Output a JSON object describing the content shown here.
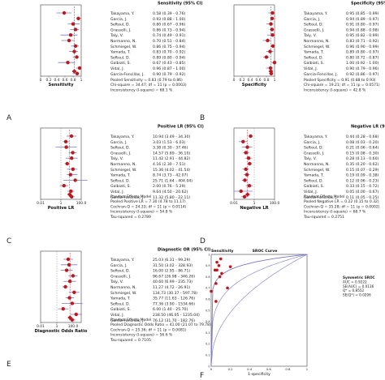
{
  "chart_data": [
    {
      "panel": "A",
      "type": "forest",
      "column_header": "Sensitivity (95% CI)",
      "xlabel": "Sensitivity",
      "ticks": [
        "0",
        "0.2",
        "0.4",
        "0.6",
        "0.8",
        "1"
      ],
      "xlim": [
        0,
        1
      ],
      "log_scale": false,
      "pooled": 0.83,
      "studies": [
        {
          "name": "Takayama, Y.",
          "value": 0.58,
          "lo": 0.39,
          "hi": 0.76,
          "text": "0.58    (0.39 - 0.76)"
        },
        {
          "name": "Garcia, J.",
          "value": 0.93,
          "lo": 0.88,
          "hi": 1.0,
          "text": "0.93    (0.88 - 1.00)"
        },
        {
          "name": "Seftoul, D.",
          "value": 0.8,
          "lo": 0.67,
          "hi": 0.96,
          "text": "0.80    (0.67 - 0.96)"
        },
        {
          "name": "Grasselli, J.",
          "value": 0.86,
          "lo": 0.73,
          "hi": 0.94,
          "text": "0.86    (0.73 - 0.94)"
        },
        {
          "name": "Taly, V.",
          "value": 0.74,
          "lo": 0.49,
          "hi": 0.91,
          "text": "0.74    (0.49 - 0.91)"
        },
        {
          "name": "Normanno, N.",
          "value": 0.7,
          "lo": 0.51,
          "hi": 0.84,
          "text": "0.70    (0.51 - 0.84)"
        },
        {
          "name": "Schmiegel, W.",
          "value": 0.86,
          "lo": 0.75,
          "hi": 0.94,
          "text": "0.86    (0.75 - 0.94)"
        },
        {
          "name": "Yamada, T.",
          "value": 0.83,
          "lo": 0.7,
          "hi": 0.92,
          "text": "0.83    (0.70 - 0.92)"
        },
        {
          "name": "Seftoul, D.",
          "value": 0.89,
          "lo": 0.8,
          "hi": 0.94,
          "text": "0.89    (0.80 - 0.94)"
        },
        {
          "name": "Galbiati, S.",
          "value": 0.67,
          "lo": 0.43,
          "hi": 0.85,
          "text": "0.67    (0.43 - 0.85)"
        },
        {
          "name": "Vidal, J.",
          "value": 0.96,
          "lo": 0.87,
          "hi": 1.0,
          "text": "0.96    (0.87 - 1.00)"
        },
        {
          "name": "Garcia-Foncillas, J.",
          "value": 0.9,
          "lo": 0.79,
          "hi": 0.92,
          "text": "0.90    (0.79 - 0.92)"
        }
      ],
      "summary": [
        "Pooled Sensitivity = 0.83 (0.79 to 0.86)",
        "Chi-square = 34.47; df = 11 (p = 0.0003)",
        "Inconsistency (I-square) = 68.1 %"
      ]
    },
    {
      "panel": "B",
      "type": "forest",
      "column_header": "Specificity (95% CI)",
      "xlabel": "Specificity",
      "ticks": [
        "0",
        "0.2",
        "0.4",
        "0.6",
        "0.8",
        "1"
      ],
      "xlim": [
        0,
        1
      ],
      "log_scale": false,
      "pooled": 0.91,
      "studies": [
        {
          "name": "Takayama, Y.",
          "value": 0.95,
          "lo": 0.85,
          "hi": 0.99,
          "text": "0.95    (0.85 - 0.99)"
        },
        {
          "name": "Garcia, J.",
          "value": 0.94,
          "lo": 0.89,
          "hi": 0.97,
          "text": "0.94    (0.89 - 0.97)"
        },
        {
          "name": "Seftoul, D.",
          "value": 0.91,
          "lo": 0.8,
          "hi": 0.97,
          "text": "0.91    (0.80 - 0.97)"
        },
        {
          "name": "Grasselli, J.",
          "value": 0.94,
          "lo": 0.88,
          "hi": 0.98,
          "text": "0.94    (0.88 - 0.98)"
        },
        {
          "name": "Taly, V.",
          "value": 0.95,
          "lo": 0.82,
          "hi": 0.99,
          "text": "0.95    (0.82 - 0.99)"
        },
        {
          "name": "Normanno, N.",
          "value": 0.83,
          "lo": 0.71,
          "hi": 0.92,
          "text": "0.83    (0.71 - 0.92)"
        },
        {
          "name": "Schmiegel, W.",
          "value": 0.96,
          "lo": 0.9,
          "hi": 0.99,
          "text": "0.96    (0.90 - 0.99)"
        },
        {
          "name": "Yamada, T.",
          "value": 0.89,
          "lo": 0.8,
          "hi": 0.97,
          "text": "0.89    (0.80 - 0.97)"
        },
        {
          "name": "Seftoul, D.",
          "value": 0.8,
          "lo": 0.72,
          "hi": 0.87,
          "text": "0.80    (0.72 - 0.87)"
        },
        {
          "name": "Galbiati, S.",
          "value": 1.0,
          "lo": 0.92,
          "hi": 1.0,
          "text": "1.00    (0.92 - 1.00)"
        },
        {
          "name": "Vidal, J.",
          "value": 0.9,
          "lo": 0.79,
          "hi": 0.96,
          "text": "0.90    (0.79 - 0.96)"
        },
        {
          "name": "Garcia-Foncillas, J.",
          "value": 0.92,
          "lo": 0.86,
          "hi": 0.97,
          "text": "0.92    (0.86 - 0.97)"
        }
      ],
      "summary": [
        "Pooled Specificity = 0.91 (0.88 to 0.93)",
        "Chi-square = 19.21; df = 11 (p = 0.0571)",
        "Inconsistency (I-square) = 42.8 %"
      ]
    },
    {
      "panel": "C",
      "type": "forest",
      "column_header": "Positive LR (95% CI)",
      "xlabel": "Positive LR",
      "ticks": [
        "0.01",
        "1",
        "100.0"
      ],
      "xlim": [
        0.01,
        100
      ],
      "log_scale": true,
      "pooled": 7.3,
      "studies": [
        {
          "name": "Takayama, Y.",
          "value": 10.94,
          "lo": 3.49,
          "hi": 34.3,
          "text": "10.94    (3.49 - 34.30)"
        },
        {
          "name": "Garcia, J.",
          "value": 3.03,
          "lo": 1.53,
          "hi": 6.03,
          "text": "3.03    (1.53 - 6.03)"
        },
        {
          "name": "Seftoul, D.",
          "value": 3.38,
          "lo": 0.3,
          "hi": 37.46,
          "text": "3.38    (0.30 - 37.46)"
        },
        {
          "name": "Grasselli, J.",
          "value": 14.57,
          "lo": 5.89,
          "hi": 36.1,
          "text": "14.57    (5.89 - 36.10)"
        },
        {
          "name": "Taly, V.",
          "value": 11.42,
          "lo": 2.91,
          "hi": 44.82,
          "text": "11.42    (2.91 - 44.82)"
        },
        {
          "name": "Normanno, N.",
          "value": 4.16,
          "lo": 2.3,
          "hi": 7.51,
          "text": "4.16    (2.30 - 7.51)"
        },
        {
          "name": "Schmiegel, W.",
          "value": 15.36,
          "lo": 4.02,
          "hi": 41.54,
          "text": "15.36    (4.02 - 41.54)"
        },
        {
          "name": "Yamada, T.",
          "value": 8.74,
          "lo": 3.73,
          "hi": 42.07,
          "text": "8.74    (3.73 - 42.07)"
        },
        {
          "name": "Seftoul, D.",
          "value": 25.71,
          "lo": 1.64,
          "hi": 404.04,
          "text": "25.71    (1.64 - 404.04)"
        },
        {
          "name": "Galbiati, S.",
          "value": 2.0,
          "lo": 0.76,
          "hi": 5.29,
          "text": "2.00    (0.76 - 5.29)"
        },
        {
          "name": "Vidal, J.",
          "value": 9.64,
          "lo": 4.5,
          "hi": 20.62,
          "text": "9.64    (4.50 - 20.62)"
        },
        {
          "name": "Garcia-Foncillas, J.",
          "value": 11.32,
          "lo": 5.8,
          "hi": 22.11,
          "text": "11.32    (5.80 - 22.11)"
        }
      ],
      "summary": [
        "Random Effects Model",
        "Pooled Positive LR = 7.30 (4.78 to 11.17)",
        "Cochran-Q = 24.33; df = 11 (p = 0.0114)",
        "Inconsistency (I-square) = 54.8 %",
        "Tau-squared = 0.2789"
      ]
    },
    {
      "panel": "D",
      "type": "forest",
      "column_header": "Negative LR (95% CI)",
      "xlabel": "Negative LR",
      "ticks": [
        "0.01",
        "1",
        "100.0"
      ],
      "xlim": [
        0.01,
        100
      ],
      "log_scale": true,
      "pooled": 0.22,
      "studies": [
        {
          "name": "Takayama, Y.",
          "value": 0.44,
          "lo": 0.28,
          "hi": 0.68,
          "text": "0.44    (0.28 - 0.68)"
        },
        {
          "name": "Garcia, J.",
          "value": 0.08,
          "lo": 0.03,
          "hi": 0.2,
          "text": "0.08    (0.03 - 0.20)"
        },
        {
          "name": "Seftoul, D.",
          "value": 0.21,
          "lo": 0.06,
          "hi": 0.64,
          "text": "0.21    (0.06 - 0.64)"
        },
        {
          "name": "Grasselli, J.",
          "value": 0.15,
          "lo": 0.08,
          "hi": 0.3,
          "text": "0.15    (0.08 - 0.30)"
        },
        {
          "name": "Taly, V.",
          "value": 0.28,
          "lo": 0.13,
          "hi": 0.6,
          "text": "0.28    (0.13 - 0.60)"
        },
        {
          "name": "Normanno, N.",
          "value": 0.35,
          "lo": 0.2,
          "hi": 0.62,
          "text": "0.35    (0.20 - 0.62)"
        },
        {
          "name": "Schmiegel, W.",
          "value": 0.15,
          "lo": 0.07,
          "hi": 0.29,
          "text": "0.15    (0.07 - 0.29)"
        },
        {
          "name": "Yamada, T.",
          "value": 0.19,
          "lo": 0.09,
          "hi": 0.38,
          "text": "0.19    (0.09 - 0.38)"
        },
        {
          "name": "Seftoul, D.",
          "value": 0.12,
          "lo": 0.06,
          "hi": 0.23,
          "text": "0.12    (0.06 - 0.23)"
        },
        {
          "name": "Galbiati, S.",
          "value": 0.33,
          "lo": 0.15,
          "hi": 0.72,
          "text": "0.33    (0.15 - 0.72)"
        },
        {
          "name": "Vidal, J.",
          "value": 0.05,
          "lo": 0.0,
          "hi": 0.67,
          "text": "0.05    (0.00 - 0.67)"
        },
        {
          "name": "Garcia-Foncillas, J.",
          "value": 0.11,
          "lo": 0.05,
          "hi": 0.25,
          "text": "0.11    (0.05 - 0.25)"
        }
      ],
      "summary": [
        "Random Effects Model",
        "Pooled Negative LR = 0.22 (0.15 to 0.32)",
        "Cochran-Q = 35.28; df = 11 (p = 0.0002)",
        "Inconsistency (I-square) = 68.7 %",
        "Tau-squared = 0.2751"
      ]
    },
    {
      "panel": "E",
      "type": "forest",
      "column_header": "Diagnostic OR (95% CI)",
      "xlabel": "Diagnostic Odds Ratio",
      "ticks": [
        "0.01",
        "1",
        "100.0"
      ],
      "xlim": [
        0.01,
        1000
      ],
      "log_scale": true,
      "pooled": 41.0,
      "studies": [
        {
          "name": "Takayama, Y.",
          "value": 25.03,
          "lo": 6.31,
          "hi": 99.29,
          "text": "25.03    (6.31 - 99.29)"
        },
        {
          "name": "Garcia, J.",
          "value": 31.5,
          "lo": 3.02,
          "hi": 328.93,
          "text": "31.50    (3.02 - 328.93)"
        },
        {
          "name": "Seftoul, D.",
          "value": 16.0,
          "lo": 2.95,
          "hi": 86.71,
          "text": "16.00    (2.95 - 86.71)"
        },
        {
          "name": "Grasselli, J.",
          "value": 96.67,
          "lo": 26.98,
          "hi": 346.26,
          "text": "96.67    (26.98 - 346.26)"
        },
        {
          "name": "Taly, V.",
          "value": 40.6,
          "lo": 6.99,
          "hi": 235.73,
          "text": "40.60    (6.99 - 235.73)"
        },
        {
          "name": "Normanno, N.",
          "value": 11.27,
          "lo": 4.72,
          "hi": 26.91,
          "text": "11.27    (4.72 - 26.91)"
        },
        {
          "name": "Schmiegel, W.",
          "value": 134.73,
          "lo": 30.37,
          "hi": 597.78,
          "text": "134.73    (30.37 - 597.78)"
        },
        {
          "name": "Yamada, T.",
          "value": 35.77,
          "lo": 11.63,
          "hi": 126.76,
          "text": "35.77    (11.63 - 126.76)"
        },
        {
          "name": "Seftoul, D.",
          "value": 77.36,
          "lo": 3.9,
          "hi": 1534.66,
          "text": "77.36    (3.90 - 1534.66)"
        },
        {
          "name": "Galbiati, S.",
          "value": 6.0,
          "lo": 1.4,
          "hi": 25.7,
          "text": "6.00    (1.40 - 25.70)"
        },
        {
          "name": "Vidal, J.",
          "value": 238.5,
          "lo": 46.05,
          "hi": 1235.04,
          "text": "238.50    (46.05 - 1235.04)"
        },
        {
          "name": "Garcia-Foncillas, J.",
          "value": 76.12,
          "lo": 31.7,
          "hi": 182.76,
          "text": "76.12    (31.70 - 182.76)"
        }
      ],
      "summary": [
        "Random Effects Model",
        "Pooled Diagnostic Odds Ratio = 41.00 (21.07 to 79.78)",
        "Cochran-Q = 25.36; df = 11 (p = 0.0081)",
        "Inconsistency (I-square) = 56.6 %",
        "Tau-squared = 0.7105"
      ]
    },
    {
      "panel": "F",
      "type": "scatter",
      "title": "SROC Curve",
      "ylabel": "Sensitivity",
      "xlabel": "1-specificity",
      "xlim": [
        0,
        1
      ],
      "ylim": [
        0,
        1
      ],
      "x_ticks": [
        "0",
        "0.2",
        "0.4",
        "0.6",
        "0.8",
        "1"
      ],
      "y_ticks": [
        "0",
        "0.1",
        "0.2",
        "0.3",
        "0.4",
        "0.5",
        "0.6",
        "0.7",
        "0.8",
        "0.9",
        "1"
      ],
      "points": [
        {
          "x": 0.05,
          "y": 0.58
        },
        {
          "x": 0.06,
          "y": 0.93
        },
        {
          "x": 0.09,
          "y": 0.8
        },
        {
          "x": 0.06,
          "y": 0.86
        },
        {
          "x": 0.05,
          "y": 0.74
        },
        {
          "x": 0.17,
          "y": 0.7
        },
        {
          "x": 0.04,
          "y": 0.86
        },
        {
          "x": 0.11,
          "y": 0.83
        },
        {
          "x": 0.2,
          "y": 0.89
        },
        {
          "x": 0.0,
          "y": 0.67
        },
        {
          "x": 0.1,
          "y": 0.96
        },
        {
          "x": 0.08,
          "y": 0.9
        }
      ],
      "legend": [
        "Symmetric SROC",
        "AUC = 0.9222",
        "SE(AUC) = 0.0136",
        "Q* = 0.8552",
        "SE(Q*) = 0.0206"
      ],
      "legend_position": "right"
    }
  ],
  "panel_letters": [
    "A",
    "B",
    "C",
    "D",
    "E",
    "F"
  ],
  "colors": {
    "marker": "#c0171d",
    "line": "#7a7ac8",
    "pooled_line": "#c0171d",
    "frame": "#444444",
    "curve": "#7a7ac8"
  }
}
